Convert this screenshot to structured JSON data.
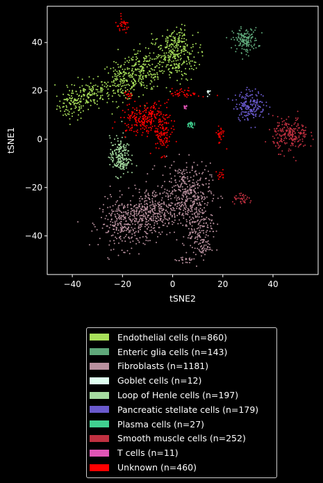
{
  "chart_data": {
    "type": "scatter",
    "title": "",
    "xlabel": "tSNE2",
    "ylabel": "tSNE1",
    "xlim": [
      -50,
      58
    ],
    "ylim": [
      -56,
      55
    ],
    "xticks": [
      "−40",
      "−20",
      "0",
      "20",
      "40"
    ],
    "xtick_values": [
      -40,
      -20,
      0,
      20,
      40
    ],
    "yticks": [
      "−40",
      "−20",
      "0",
      "20",
      "40"
    ],
    "ytick_values": [
      -40,
      -20,
      0,
      20,
      40
    ],
    "grid": false,
    "legend_position": "bottom",
    "series": [
      {
        "name": "Endothelial cells (n=860)",
        "color": "#a8e05a",
        "n": 860,
        "clusters": [
          [
            -40,
            14,
            3,
            3
          ],
          [
            -33,
            19,
            4,
            3
          ],
          [
            -20,
            24,
            4,
            4
          ],
          [
            -12,
            28,
            4,
            4
          ],
          [
            0,
            34,
            5,
            5
          ],
          [
            2,
            41,
            2,
            3
          ]
        ]
      },
      {
        "name": "Enteric glia cells (n=143)",
        "color": "#5fa87a",
        "n": 143,
        "clusters": [
          [
            29,
            41,
            2.5,
            2.5
          ]
        ]
      },
      {
        "name": "Fibroblasts (n=1181)",
        "color": "#b9909e",
        "n": 1181,
        "clusters": [
          [
            -19,
            -35,
            5,
            5
          ],
          [
            5,
            -22,
            5,
            6
          ],
          [
            -8,
            -30,
            5,
            5
          ],
          [
            10,
            -35,
            3,
            5
          ],
          [
            12,
            -45,
            2,
            2
          ],
          [
            5,
            -50,
            2,
            1
          ]
        ]
      },
      {
        "name": "Goblet cells (n=12)",
        "color": "#dffff0",
        "n": 12,
        "clusters": [
          [
            14,
            19.5,
            0.4,
            0.6
          ]
        ]
      },
      {
        "name": "Loop of Henle cells (n=197)",
        "color": "#a5dba0",
        "n": 197,
        "clusters": [
          [
            -21,
            -7,
            2,
            4
          ]
        ]
      },
      {
        "name": "Pancreatic stellate cells (n=179)",
        "color": "#6a5acd",
        "n": 179,
        "clusters": [
          [
            31,
            14,
            3,
            3
          ]
        ]
      },
      {
        "name": "Plasma cells (n=27)",
        "color": "#40d090",
        "n": 27,
        "clusters": [
          [
            7,
            6,
            0.7,
            0.7
          ]
        ]
      },
      {
        "name": "Smooth muscle cells (n=252)",
        "color": "#c03040",
        "n": 252,
        "clusters": [
          [
            47,
            2,
            3.5,
            3.5
          ],
          [
            28,
            -25,
            2,
            1
          ]
        ]
      },
      {
        "name": "T cells (n=11)",
        "color": "#e055b5",
        "n": 11,
        "clusters": [
          [
            5,
            13,
            0.6,
            0.6
          ]
        ]
      },
      {
        "name": "Unknown (n=460)",
        "color": "#ff0000",
        "n": 460,
        "clusters": [
          [
            -20,
            47,
            1.5,
            1.5
          ],
          [
            -13,
            8,
            4,
            3
          ],
          [
            -7,
            11,
            2,
            2
          ],
          [
            -4,
            2,
            2,
            4
          ],
          [
            19,
            2,
            1,
            2
          ],
          [
            19,
            -15,
            1,
            1
          ],
          [
            -18,
            18,
            1,
            1
          ],
          [
            5,
            19,
            3,
            1
          ]
        ]
      }
    ]
  }
}
